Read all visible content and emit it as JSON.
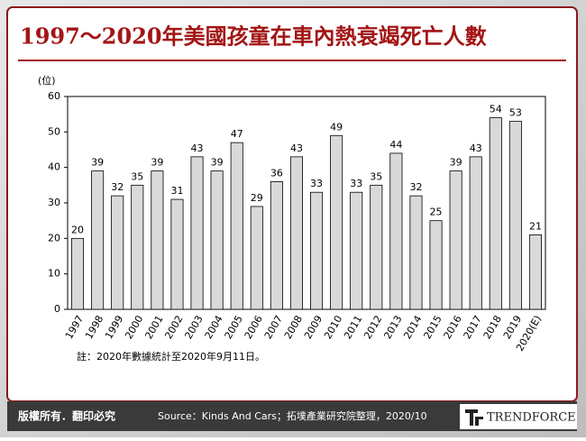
{
  "chart_data": {
    "type": "bar",
    "title": "1997～2020年美國孩童在車內熱衰竭死亡人數",
    "y_label": "(位)",
    "categories": [
      "1997",
      "1998",
      "1999",
      "2000",
      "2001",
      "2002",
      "2003",
      "2004",
      "2005",
      "2006",
      "2007",
      "2008",
      "2009",
      "2010",
      "2011",
      "2012",
      "2013",
      "2014",
      "2015",
      "2016",
      "2017",
      "2018",
      "2019",
      "2020(E)"
    ],
    "values": [
      20,
      39,
      32,
      35,
      39,
      31,
      43,
      39,
      47,
      29,
      36,
      43,
      33,
      49,
      33,
      35,
      44,
      32,
      25,
      39,
      43,
      54,
      53,
      21
    ],
    "color": "#d9d9d9",
    "ylim": [
      0,
      60
    ],
    "yticks": [
      0,
      10,
      20,
      30,
      40,
      50,
      60
    ],
    "grid": false
  },
  "note": "註：2020年數據統計至2020年9月11日。",
  "footer": {
    "copyright": "版權所有．翻印必究",
    "source": "Source：Kinds And Cars；拓墣產業研究院整理，2020/10",
    "logo": "TRENDFORCE"
  }
}
